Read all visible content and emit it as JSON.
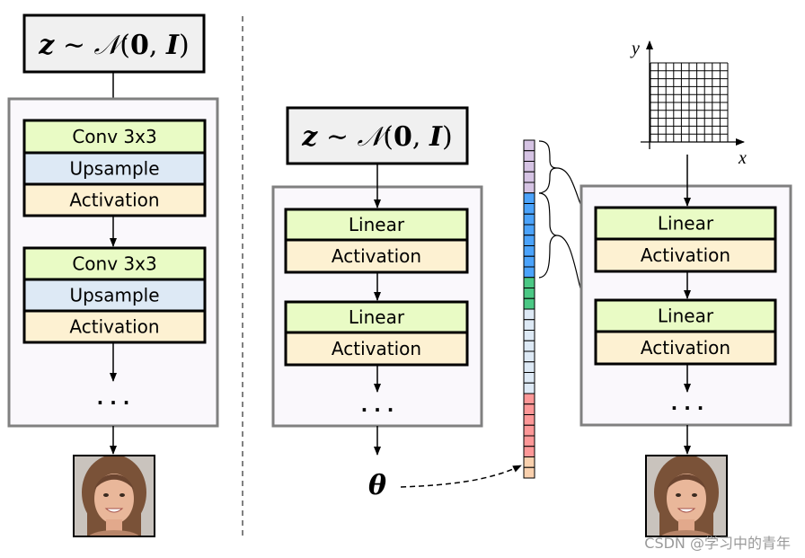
{
  "formula": {
    "z": "z",
    "sim": " ∼ ",
    "n": "𝒩",
    "open": "(",
    "zero": "0",
    "comma": ", ",
    "i": "I",
    "close": ")"
  },
  "left": {
    "blocks": [
      "Conv 3x3",
      "Upsample",
      "Activation",
      "Conv 3x3",
      "Upsample",
      "Activation"
    ],
    "ellipsis": "· · ·"
  },
  "middle": {
    "blocks": [
      "Linear",
      "Activation",
      "Linear",
      "Activation"
    ],
    "ellipsis": "· · ·",
    "theta": "θ"
  },
  "right": {
    "blocks": [
      "Linear",
      "Activation",
      "Linear",
      "Activation"
    ],
    "ellipsis": "· · ·",
    "axis_x": "x",
    "axis_y": "y"
  },
  "parameter_vector": {
    "segments": [
      {
        "color": "#d5c3e3",
        "count": 5
      },
      {
        "color": "#4ba3fb",
        "count": 8
      },
      {
        "color": "#4bc884",
        "count": 3
      },
      {
        "color": "#dde9f5",
        "count": 8
      },
      {
        "color": "#fd9797",
        "count": 6
      },
      {
        "color": "#f9d0ad",
        "count": 2
      }
    ]
  },
  "colors": {
    "conv": "#e9fbc5",
    "upsample": "#dde9f5",
    "activation": "#fdf1d2",
    "panel": "#faf8fc",
    "input": "#f0f0f0"
  },
  "watermark": "CSDN @学习中的青年"
}
